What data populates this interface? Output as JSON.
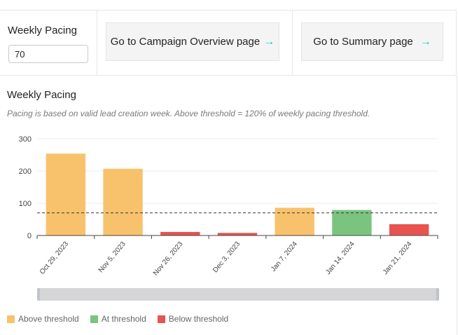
{
  "header": {
    "pacing_label": "Weekly Pacing",
    "pacing_value": "70",
    "campaign_button": "Go to Campaign Overview page",
    "summary_button": "Go to Summary page",
    "arrow_icon": "arrow-right-icon",
    "arrow_glyph": "→",
    "accent_color": "#1cc6c6"
  },
  "section": {
    "title": "Weekly Pacing",
    "note": "Pacing is based on valid lead creation week. Above threshold = 120% of weekly pacing threshold."
  },
  "legend": [
    {
      "label": "Above threshold",
      "color": "#f8c26c"
    },
    {
      "label": "At threshold",
      "color": "#7bc47f"
    },
    {
      "label": "Below threshold",
      "color": "#e8534f"
    }
  ],
  "chart_data": {
    "type": "bar",
    "categories": [
      "Oct 29, 2023",
      "Nov 5, 2023",
      "Nov 26, 2023",
      "Dec 3, 2023",
      "Jan 7, 2024",
      "Jan 14, 2024",
      "Jan 21, 2024"
    ],
    "values": [
      254,
      207,
      11,
      8,
      86,
      79,
      35
    ],
    "status": [
      "Above threshold",
      "Above threshold",
      "Below threshold",
      "Below threshold",
      "Above threshold",
      "At threshold",
      "Below threshold"
    ],
    "threshold": 70,
    "yticks": [
      "0",
      "100",
      "200",
      "300"
    ],
    "ylim": [
      0,
      300
    ],
    "grid": true,
    "legend_position": "bottom-left"
  }
}
